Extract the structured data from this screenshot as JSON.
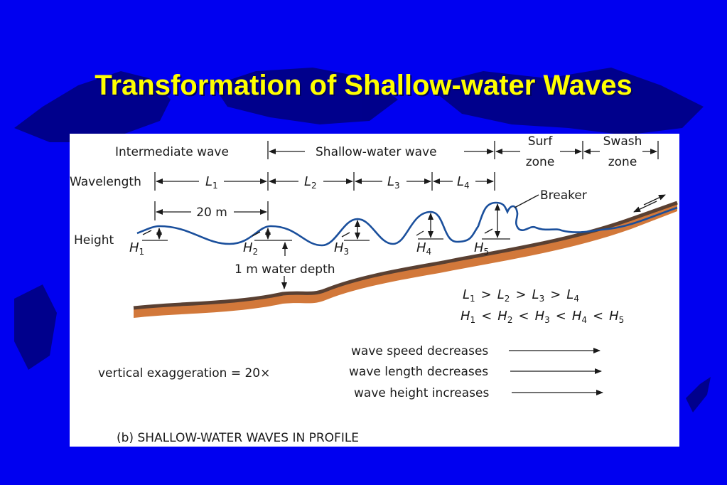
{
  "slide": {
    "title": "Transformation of Shallow-water Waves"
  },
  "figure": {
    "headers": {
      "intermediate": "Intermediate wave",
      "shallow": "Shallow-water wave",
      "surf_top": "Surf",
      "surf_bottom": "zone",
      "swash_top": "Swash",
      "swash_bottom": "zone"
    },
    "wavelength_label": "Wavelength",
    "height_label": "Height",
    "wavelength_symbol": "L",
    "height_symbol": "H",
    "indices": [
      "1",
      "2",
      "3",
      "4",
      "5"
    ],
    "distance_label": "20 m",
    "breaker_label": "Breaker",
    "depth_label": "1 m water depth",
    "inequality_sign_wavelength": ">",
    "inequality_sign_height": "<",
    "trends": [
      "wave speed decreases",
      "wave length decreases",
      "wave height increases"
    ],
    "exaggeration": "vertical exaggeration = 20×",
    "caption": "(b) SHALLOW-WATER WAVES IN PROFILE",
    "colors": {
      "wave": "#1a4f9c",
      "seafloor_fill": "#d2783a",
      "seafloor_edge": "#5a4032",
      "background": "#0000f0",
      "title": "#ffff00"
    }
  }
}
